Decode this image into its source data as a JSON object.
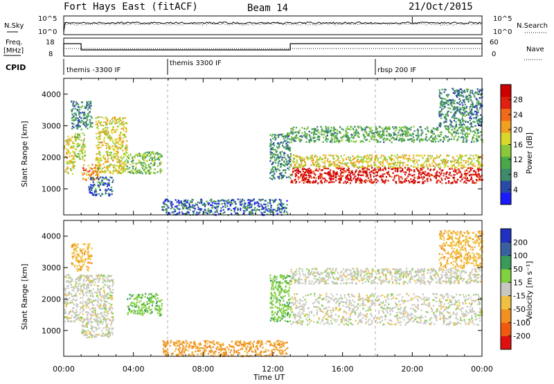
{
  "header": {
    "site": "Fort Hays East (fitACF)",
    "beam": "Beam 14",
    "date": "21/Oct/2015"
  },
  "noise_panel": {
    "left_label": "N.Sky",
    "left_ticks": [
      "10^5",
      "10^0"
    ],
    "right_label": "N.Search",
    "right_ticks": [
      "10^5",
      "10^0"
    ]
  },
  "freq_panel": {
    "left_label_1": "Freq.",
    "left_label_2": "[MHz]",
    "left_ticks": [
      "18",
      "8"
    ],
    "right_label": "Nave",
    "right_ticks": [
      "60",
      "0"
    ]
  },
  "cpid": {
    "label": "CPID",
    "segments": [
      "themis -3300 IF",
      "themis 3300 IF",
      "rbsp 200 IF"
    ]
  },
  "power_colorbar": {
    "label": "Power [dB]",
    "ticks": [
      "4",
      "8",
      "12",
      "16",
      "20",
      "24",
      "28"
    ],
    "colors": [
      "#1a1aff",
      "#2a4aa8",
      "#3f8a6a",
      "#4aa84a",
      "#8ac83a",
      "#d8d82a",
      "#f0a020",
      "#f06a18",
      "#e02010",
      "#cc0000"
    ]
  },
  "velocity_colorbar": {
    "label": "Velocity [m s⁻¹]",
    "ticks": [
      "-200",
      "-100",
      "-50",
      "-15",
      "15",
      "50",
      "100",
      "200"
    ],
    "colors": [
      "#e01010",
      "#f05a10",
      "#f09020",
      "#f0c040",
      "#c8c8c0",
      "#80d040",
      "#3a9a5a",
      "#3a60a0",
      "#2030c0"
    ]
  },
  "x_axis": {
    "label": "Time UT",
    "ticks": [
      "00:00",
      "04:00",
      "08:00",
      "12:00",
      "16:00",
      "20:00",
      "00:00"
    ]
  },
  "y_axis": {
    "label": "Slant Range [km]",
    "ticks": [
      "1000",
      "2000",
      "3000",
      "4000"
    ]
  },
  "chart_data": [
    {
      "type": "heatmap",
      "title": "Power",
      "xlabel": "Time UT",
      "ylabel": "Slant Range [km]",
      "xlim": [
        0,
        24
      ],
      "ylim": [
        180,
        4500
      ],
      "colorbar_label": "Power [dB]",
      "colorbar_range": [
        3,
        30
      ],
      "regions": [
        {
          "t0": 0.0,
          "t1": 0.6,
          "r0": 1500,
          "r1": 2700,
          "value": 18
        },
        {
          "t0": 0.6,
          "t1": 1.2,
          "r0": 1900,
          "r1": 2800,
          "value": 16
        },
        {
          "t0": 0.4,
          "t1": 1.6,
          "r0": 2900,
          "r1": 3800,
          "value": 10
        },
        {
          "t0": 1.0,
          "t1": 2.0,
          "r0": 1300,
          "r1": 1800,
          "value": 22
        },
        {
          "t0": 1.4,
          "t1": 2.8,
          "r0": 800,
          "r1": 1400,
          "value": 8
        },
        {
          "t0": 1.8,
          "t1": 3.6,
          "r0": 1500,
          "r1": 3300,
          "value": 18
        },
        {
          "t0": 3.6,
          "t1": 5.6,
          "r0": 1500,
          "r1": 2200,
          "value": 14
        },
        {
          "t0": 5.6,
          "t1": 12.8,
          "r0": 200,
          "r1": 700,
          "value": 8
        },
        {
          "t0": 11.8,
          "t1": 13.0,
          "r0": 1300,
          "r1": 2800,
          "value": 10
        },
        {
          "t0": 13.0,
          "t1": 24.0,
          "r0": 1200,
          "r1": 1700,
          "value": 28
        },
        {
          "t0": 13.0,
          "t1": 24.0,
          "r0": 1700,
          "r1": 2100,
          "value": 18
        },
        {
          "t0": 13.0,
          "t1": 24.0,
          "r0": 2500,
          "r1": 3000,
          "value": 12
        },
        {
          "t0": 21.5,
          "t1": 24.0,
          "r0": 3000,
          "r1": 4200,
          "value": 10
        }
      ]
    },
    {
      "type": "heatmap",
      "title": "Velocity",
      "xlabel": "Time UT",
      "ylabel": "Slant Range [km]",
      "xlim": [
        0,
        24
      ],
      "ylim": [
        180,
        4500
      ],
      "colorbar_label": "Velocity [m s⁻¹]",
      "colorbar_range": [
        -250,
        250
      ],
      "regions": [
        {
          "t0": 0.0,
          "t1": 2.8,
          "r0": 1300,
          "r1": 2800,
          "value": 0
        },
        {
          "t0": 1.0,
          "t1": 2.8,
          "r0": 800,
          "r1": 1400,
          "value": 0
        },
        {
          "t0": 0.4,
          "t1": 1.6,
          "r0": 2900,
          "r1": 3800,
          "value": -40
        },
        {
          "t0": 3.6,
          "t1": 5.6,
          "r0": 1500,
          "r1": 2200,
          "value": 40
        },
        {
          "t0": 5.6,
          "t1": 12.8,
          "r0": 200,
          "r1": 700,
          "value": -60
        },
        {
          "t0": 11.8,
          "t1": 13.0,
          "r0": 1300,
          "r1": 2800,
          "value": 40
        },
        {
          "t0": 13.0,
          "t1": 24.0,
          "r0": 1200,
          "r1": 2200,
          "value": 0
        },
        {
          "t0": 13.0,
          "t1": 24.0,
          "r0": 2500,
          "r1": 3000,
          "value": 0
        },
        {
          "t0": 21.5,
          "t1": 24.0,
          "r0": 3000,
          "r1": 4200,
          "value": -40
        }
      ]
    }
  ]
}
